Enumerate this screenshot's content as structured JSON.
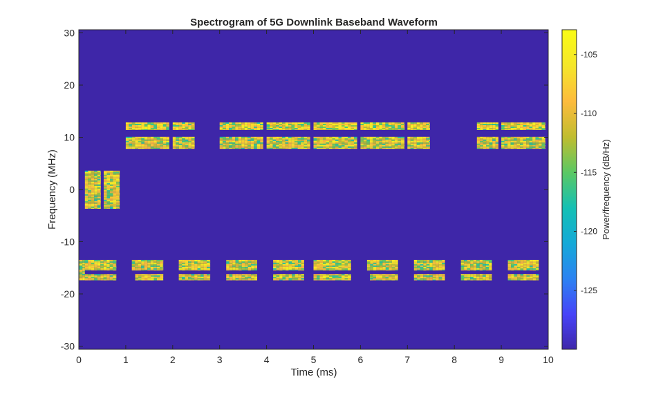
{
  "chart_data": {
    "type": "heatmap",
    "title": "Spectrogram of 5G Downlink Baseband Waveform",
    "xlabel": "Time (ms)",
    "ylabel": "Frequency (MHz)",
    "xlim": [
      0,
      10
    ],
    "ylim": [
      -30.6,
      30.6
    ],
    "xticks": [
      0,
      1,
      2,
      3,
      4,
      5,
      6,
      7,
      8,
      9,
      10
    ],
    "yticks": [
      -30,
      -20,
      -10,
      0,
      10,
      20,
      30
    ],
    "colorbar": {
      "label": "Power/frequency (dB/Hz)",
      "clim": [
        -130,
        -102.9
      ],
      "ticks": [
        -125,
        -120,
        -115,
        -110,
        -105
      ],
      "colormap": "parula"
    },
    "background_level_db": -130,
    "active_blocks_db_range": [
      -122,
      -104
    ],
    "blocks": [
      {
        "t": [
          0.13,
          0.47
        ],
        "f": [
          -3.7,
          3.6
        ]
      },
      {
        "t": [
          0.53,
          0.87
        ],
        "f": [
          -3.7,
          3.6
        ]
      },
      {
        "t": [
          1.0,
          1.93
        ],
        "f": [
          11.4,
          12.85
        ]
      },
      {
        "t": [
          1.0,
          1.93
        ],
        "f": [
          7.8,
          10.1
        ]
      },
      {
        "t": [
          2.0,
          2.47
        ],
        "f": [
          11.4,
          12.85
        ]
      },
      {
        "t": [
          2.0,
          2.47
        ],
        "f": [
          7.8,
          10.1
        ]
      },
      {
        "t": [
          3.0,
          3.93
        ],
        "f": [
          11.4,
          12.85
        ]
      },
      {
        "t": [
          3.0,
          3.93
        ],
        "f": [
          7.8,
          10.1
        ]
      },
      {
        "t": [
          4.0,
          4.93
        ],
        "f": [
          11.4,
          12.85
        ]
      },
      {
        "t": [
          4.0,
          4.93
        ],
        "f": [
          7.8,
          10.1
        ]
      },
      {
        "t": [
          5.0,
          5.93
        ],
        "f": [
          11.4,
          12.85
        ]
      },
      {
        "t": [
          5.0,
          5.93
        ],
        "f": [
          7.8,
          10.1
        ]
      },
      {
        "t": [
          6.0,
          6.94
        ],
        "f": [
          11.4,
          12.85
        ]
      },
      {
        "t": [
          6.0,
          6.94
        ],
        "f": [
          7.8,
          10.1
        ]
      },
      {
        "t": [
          7.0,
          7.48
        ],
        "f": [
          11.4,
          12.85
        ]
      },
      {
        "t": [
          7.0,
          7.48
        ],
        "f": [
          7.8,
          10.1
        ]
      },
      {
        "t": [
          8.48,
          8.94
        ],
        "f": [
          11.4,
          12.85
        ]
      },
      {
        "t": [
          8.48,
          8.94
        ],
        "f": [
          7.8,
          10.1
        ]
      },
      {
        "t": [
          9.0,
          9.94
        ],
        "f": [
          11.4,
          12.85
        ]
      },
      {
        "t": [
          9.0,
          9.94
        ],
        "f": [
          7.8,
          10.1
        ]
      },
      {
        "t": [
          0.01,
          0.13
        ],
        "f": [
          -17.4,
          -13.5
        ]
      },
      {
        "t": [
          0.13,
          0.8
        ],
        "f": [
          -15.5,
          -13.5
        ]
      },
      {
        "t": [
          0.13,
          0.8
        ],
        "f": [
          -17.4,
          -16.2
        ]
      },
      {
        "t": [
          1.13,
          1.8
        ],
        "f": [
          -15.5,
          -13.5
        ]
      },
      {
        "t": [
          1.2,
          1.8
        ],
        "f": [
          -17.4,
          -16.2
        ]
      },
      {
        "t": [
          2.13,
          2.8
        ],
        "f": [
          -15.5,
          -13.5
        ]
      },
      {
        "t": [
          2.13,
          2.8
        ],
        "f": [
          -17.4,
          -16.2
        ]
      },
      {
        "t": [
          3.14,
          3.8
        ],
        "f": [
          -15.5,
          -13.5
        ]
      },
      {
        "t": [
          3.14,
          3.8
        ],
        "f": [
          -17.4,
          -16.2
        ]
      },
      {
        "t": [
          4.14,
          4.8
        ],
        "f": [
          -15.5,
          -13.5
        ]
      },
      {
        "t": [
          4.14,
          4.8
        ],
        "f": [
          -17.4,
          -16.2
        ]
      },
      {
        "t": [
          5.0,
          5.8
        ],
        "f": [
          -15.5,
          -13.5
        ]
      },
      {
        "t": [
          5.0,
          5.8
        ],
        "f": [
          -17.4,
          -16.2
        ]
      },
      {
        "t": [
          6.14,
          6.8
        ],
        "f": [
          -15.5,
          -13.5
        ]
      },
      {
        "t": [
          6.2,
          6.8
        ],
        "f": [
          -17.4,
          -16.2
        ]
      },
      {
        "t": [
          7.14,
          7.8
        ],
        "f": [
          -15.5,
          -13.5
        ]
      },
      {
        "t": [
          7.14,
          7.8
        ],
        "f": [
          -17.4,
          -16.2
        ]
      },
      {
        "t": [
          8.14,
          8.8
        ],
        "f": [
          -15.5,
          -13.5
        ]
      },
      {
        "t": [
          8.14,
          8.8
        ],
        "f": [
          -17.4,
          -16.2
        ]
      },
      {
        "t": [
          9.14,
          9.8
        ],
        "f": [
          -15.5,
          -13.5
        ]
      },
      {
        "t": [
          9.14,
          9.8
        ],
        "f": [
          -17.4,
          -16.2
        ]
      }
    ]
  }
}
